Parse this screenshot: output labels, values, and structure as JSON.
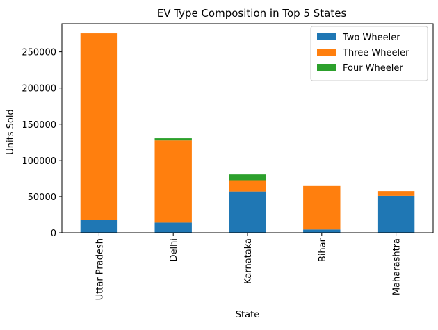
{
  "chart_data": {
    "type": "bar",
    "stacked": true,
    "title": "EV Type Composition in Top 5 States",
    "xlabel": "State",
    "ylabel": "Units Sold",
    "categories": [
      "Uttar Pradesh",
      "Delhi",
      "Karnataka",
      "Bihar",
      "Maharashtra"
    ],
    "series": [
      {
        "name": "Two Wheeler",
        "color": "#1f77b4",
        "values": [
          18000,
          14000,
          57000,
          4500,
          51000
        ]
      },
      {
        "name": "Three Wheeler",
        "color": "#ff7f0e",
        "values": [
          257500,
          113500,
          15500,
          60000,
          6500
        ]
      },
      {
        "name": "Four Wheeler",
        "color": "#2ca02c",
        "values": [
          0,
          3000,
          8000,
          0,
          0
        ]
      }
    ],
    "ylim": [
      0,
      289000
    ],
    "yticks": [
      0,
      50000,
      100000,
      150000,
      200000,
      250000
    ],
    "legend_position": "top-right",
    "grid": false
  }
}
